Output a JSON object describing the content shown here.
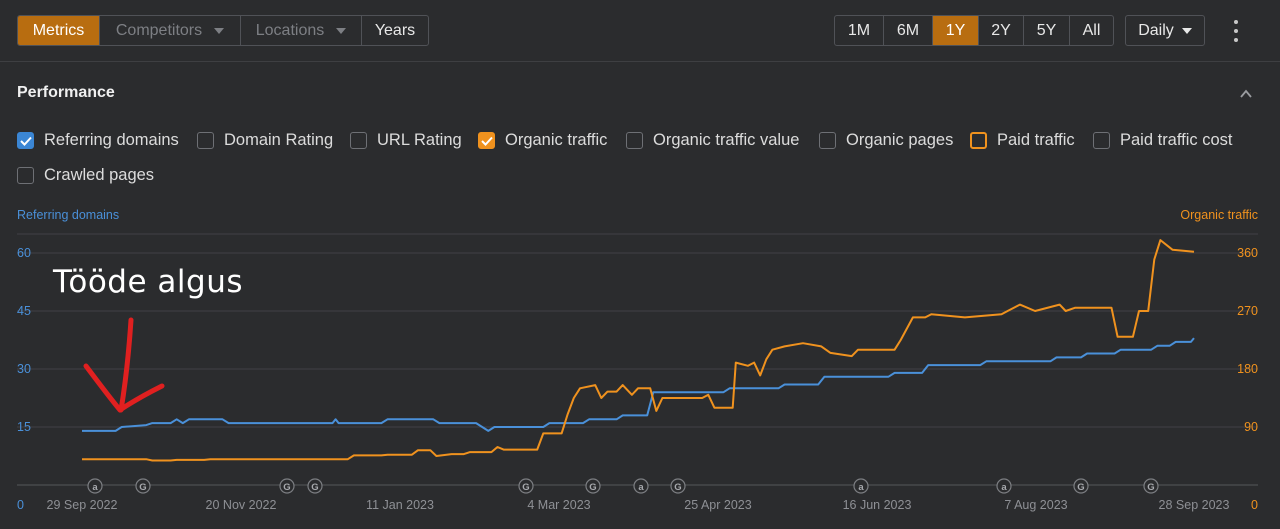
{
  "toolbar": {
    "tabs": [
      {
        "label": "Metrics",
        "active": true
      },
      {
        "label": "Competitors",
        "dropdown": true,
        "dim": true
      },
      {
        "label": "Locations",
        "dropdown": true,
        "dim": true
      },
      {
        "label": "Years"
      }
    ],
    "ranges": [
      "1M",
      "6M",
      "1Y",
      "2Y",
      "5Y",
      "All"
    ],
    "active_range": "1Y",
    "interval": "Daily"
  },
  "section_title": "Performance",
  "checkboxes": [
    {
      "label": "Referring domains",
      "state": "checked-blue"
    },
    {
      "label": "Domain Rating",
      "state": "unchecked"
    },
    {
      "label": "URL Rating",
      "state": "unchecked"
    },
    {
      "label": "Organic traffic",
      "state": "checked-orange"
    },
    {
      "label": "Organic traffic value",
      "state": "unchecked"
    },
    {
      "label": "Organic pages",
      "state": "unchecked"
    },
    {
      "label": "Paid traffic",
      "state": "outline-orange"
    },
    {
      "label": "Paid traffic cost",
      "state": "unchecked"
    },
    {
      "label": "Crawled pages",
      "state": "unchecked"
    }
  ],
  "annotation": "Tööde algus",
  "colors": {
    "blue": "#4a90d9",
    "orange": "#f0921e",
    "accent": "#b86d10",
    "arrow": "#e02020"
  },
  "chart_data": {
    "type": "line",
    "x_ticks": [
      "29 Sep 2022",
      "20 Nov 2022",
      "11 Jan 2023",
      "4 Mar 2023",
      "25 Apr 2023",
      "16 Jun 2023",
      "7 Aug 2023",
      "28 Sep 2023"
    ],
    "left_axis": {
      "title": "Referring domains",
      "ticks": [
        "0",
        "15",
        "30",
        "45",
        "60"
      ],
      "range": [
        0,
        60
      ]
    },
    "right_axis": {
      "title": "Organic traffic",
      "ticks": [
        "0",
        "90",
        "180",
        "270",
        "360"
      ],
      "range": [
        0,
        360
      ]
    },
    "event_markers": [
      "a",
      "G",
      "G",
      "G",
      "G",
      "G",
      "a",
      "G",
      "a",
      "G",
      "a",
      "G",
      "G"
    ],
    "series": [
      {
        "name": "Referring domains",
        "axis": "left",
        "color": "#4a90d9",
        "points": [
          [
            "2022-09-29",
            14
          ],
          [
            "2022-10-10",
            14
          ],
          [
            "2022-10-12",
            15
          ],
          [
            "2022-10-20",
            15.5
          ],
          [
            "2022-10-22",
            16
          ],
          [
            "2022-10-28",
            16
          ],
          [
            "2022-10-30",
            17
          ],
          [
            "2022-11-01",
            16
          ],
          [
            "2022-11-03",
            17
          ],
          [
            "2022-11-14",
            17
          ],
          [
            "2022-11-16",
            16
          ],
          [
            "2022-12-20",
            16
          ],
          [
            "2022-12-21",
            17
          ],
          [
            "2022-12-22",
            16
          ],
          [
            "2023-01-05",
            16
          ],
          [
            "2023-01-07",
            17
          ],
          [
            "2023-01-22",
            17
          ],
          [
            "2023-01-24",
            16
          ],
          [
            "2023-02-05",
            16
          ],
          [
            "2023-02-07",
            15
          ],
          [
            "2023-02-09",
            14
          ],
          [
            "2023-02-11",
            15
          ],
          [
            "2023-02-27",
            15
          ],
          [
            "2023-03-01",
            16
          ],
          [
            "2023-03-12",
            16
          ],
          [
            "2023-03-14",
            17
          ],
          [
            "2023-03-23",
            17
          ],
          [
            "2023-03-25",
            18
          ],
          [
            "2023-04-02",
            18
          ],
          [
            "2023-04-04",
            24
          ],
          [
            "2023-04-27",
            24
          ],
          [
            "2023-04-29",
            25
          ],
          [
            "2023-05-15",
            25
          ],
          [
            "2023-05-17",
            26
          ],
          [
            "2023-05-28",
            26
          ],
          [
            "2023-05-30",
            28
          ],
          [
            "2023-06-20",
            28
          ],
          [
            "2023-06-22",
            29
          ],
          [
            "2023-07-01",
            29
          ],
          [
            "2023-07-03",
            31
          ],
          [
            "2023-07-20",
            31
          ],
          [
            "2023-07-22",
            32
          ],
          [
            "2023-08-12",
            32
          ],
          [
            "2023-08-14",
            33
          ],
          [
            "2023-08-22",
            33
          ],
          [
            "2023-08-24",
            34
          ],
          [
            "2023-09-02",
            34
          ],
          [
            "2023-09-04",
            35
          ],
          [
            "2023-09-14",
            35
          ],
          [
            "2023-09-16",
            36
          ],
          [
            "2023-09-20",
            36
          ],
          [
            "2023-09-22",
            37
          ],
          [
            "2023-09-27",
            37
          ],
          [
            "2023-09-28",
            38
          ]
        ]
      },
      {
        "name": "Organic traffic",
        "axis": "right",
        "color": "#f0921e",
        "points": [
          [
            "2022-09-29",
            40
          ],
          [
            "2022-10-20",
            40
          ],
          [
            "2022-10-22",
            38
          ],
          [
            "2022-10-28",
            38
          ],
          [
            "2022-10-30",
            39
          ],
          [
            "2022-11-08",
            39
          ],
          [
            "2022-11-10",
            40
          ],
          [
            "2022-12-25",
            40
          ],
          [
            "2022-12-27",
            46
          ],
          [
            "2023-01-05",
            46
          ],
          [
            "2023-01-07",
            47
          ],
          [
            "2023-01-15",
            47
          ],
          [
            "2023-01-17",
            54
          ],
          [
            "2023-01-21",
            54
          ],
          [
            "2023-01-23",
            45
          ],
          [
            "2023-01-28",
            48
          ],
          [
            "2023-02-01",
            48
          ],
          [
            "2023-02-03",
            51
          ],
          [
            "2023-02-10",
            51
          ],
          [
            "2023-02-12",
            59
          ],
          [
            "2023-02-14",
            55
          ],
          [
            "2023-02-25",
            55
          ],
          [
            "2023-02-27",
            80
          ],
          [
            "2023-03-05",
            80
          ],
          [
            "2023-03-07",
            110
          ],
          [
            "2023-03-09",
            135
          ],
          [
            "2023-03-11",
            150
          ],
          [
            "2023-03-16",
            155
          ],
          [
            "2023-03-18",
            135
          ],
          [
            "2023-03-20",
            145
          ],
          [
            "2023-03-23",
            145
          ],
          [
            "2023-03-25",
            155
          ],
          [
            "2023-03-28",
            140
          ],
          [
            "2023-03-30",
            150
          ],
          [
            "2023-04-03",
            150
          ],
          [
            "2023-04-05",
            115
          ],
          [
            "2023-04-07",
            135
          ],
          [
            "2023-04-20",
            135
          ],
          [
            "2023-04-22",
            140
          ],
          [
            "2023-04-24",
            120
          ],
          [
            "2023-04-30",
            120
          ],
          [
            "2023-05-01",
            190
          ],
          [
            "2023-05-05",
            185
          ],
          [
            "2023-05-07",
            190
          ],
          [
            "2023-05-09",
            170
          ],
          [
            "2023-05-11",
            195
          ],
          [
            "2023-05-13",
            210
          ],
          [
            "2023-05-17",
            215
          ],
          [
            "2023-05-23",
            220
          ],
          [
            "2023-05-29",
            215
          ],
          [
            "2023-06-01",
            205
          ],
          [
            "2023-06-08",
            200
          ],
          [
            "2023-06-10",
            210
          ],
          [
            "2023-06-22",
            210
          ],
          [
            "2023-06-24",
            225
          ],
          [
            "2023-06-28",
            260
          ],
          [
            "2023-07-02",
            260
          ],
          [
            "2023-07-04",
            265
          ],
          [
            "2023-07-15",
            260
          ],
          [
            "2023-07-27",
            265
          ],
          [
            "2023-07-29",
            270
          ],
          [
            "2023-08-02",
            280
          ],
          [
            "2023-08-07",
            270
          ],
          [
            "2023-08-15",
            280
          ],
          [
            "2023-08-17",
            270
          ],
          [
            "2023-08-20",
            275
          ],
          [
            "2023-09-01",
            275
          ],
          [
            "2023-09-03",
            230
          ],
          [
            "2023-09-08",
            230
          ],
          [
            "2023-09-10",
            270
          ],
          [
            "2023-09-13",
            270
          ],
          [
            "2023-09-15",
            350
          ],
          [
            "2023-09-17",
            380
          ],
          [
            "2023-09-21",
            365
          ],
          [
            "2023-09-28",
            362
          ]
        ]
      }
    ]
  }
}
